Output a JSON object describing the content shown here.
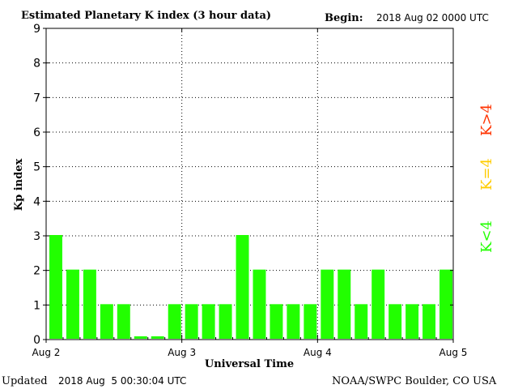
{
  "header": {
    "title": "Estimated Planetary K index (3 hour data)",
    "begin_label": "Begin:",
    "begin_value": "2018 Aug 02 0000 UTC"
  },
  "footer": {
    "updated_label": "Updated",
    "updated_value": "2018 Aug  5 00:30:04 UTC",
    "source": "NOAA/SWPC Boulder, CO USA"
  },
  "legend": {
    "high": "K>4",
    "equal": "K=4",
    "low": "K<4"
  },
  "colors": {
    "low": "#22ff00",
    "equal": "#ffcc00",
    "high": "#ff3300",
    "axis": "#000000",
    "grid": "#000000"
  },
  "chart_data": {
    "type": "bar",
    "xlabel": "Universal Time",
    "ylabel": "Kp index",
    "ylim": [
      0,
      9
    ],
    "yticks": [
      "0",
      "1",
      "2",
      "3",
      "4",
      "5",
      "6",
      "7",
      "8",
      "9"
    ],
    "day_labels": [
      "Aug 2",
      "Aug 3",
      "Aug 4",
      "Aug 5"
    ],
    "grid": true,
    "values": [
      3,
      2,
      2,
      1,
      1,
      0,
      0,
      1,
      1,
      1,
      1,
      3,
      2,
      1,
      1,
      1,
      2,
      2,
      1,
      2,
      1,
      1,
      1,
      2
    ]
  }
}
